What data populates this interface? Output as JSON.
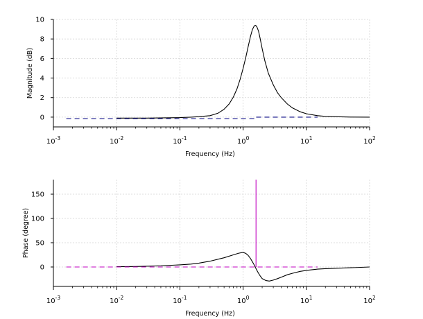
{
  "chart_data": [
    {
      "type": "line",
      "panel": "magnitude",
      "xlabel": "Frequency (Hz)",
      "ylabel": "Magnitude (dB)",
      "xscale": "log",
      "xlim": [
        0.001,
        100
      ],
      "ylim": [
        -1,
        10
      ],
      "grid": true,
      "x_ticks": [
        {
          "base": "10",
          "exp": "-3",
          "value": 0.001
        },
        {
          "base": "10",
          "exp": "-2",
          "value": 0.01
        },
        {
          "base": "10",
          "exp": "-1",
          "value": 0.1
        },
        {
          "base": "10",
          "exp": "0",
          "value": 1
        },
        {
          "base": "10",
          "exp": "1",
          "value": 10
        },
        {
          "base": "10",
          "exp": "2",
          "value": 100
        }
      ],
      "y_ticks": [
        {
          "label": "0",
          "value": 0
        },
        {
          "label": "2",
          "value": 2
        },
        {
          "label": "4",
          "value": 4
        },
        {
          "label": "6",
          "value": 6
        },
        {
          "label": "8",
          "value": 8
        },
        {
          "label": "10",
          "value": 10
        }
      ],
      "series": [
        {
          "color": "#000000",
          "style": "solid",
          "x": [
            0.01,
            0.03,
            0.1,
            0.15,
            0.2,
            0.3,
            0.4,
            0.5,
            0.6,
            0.7,
            0.8,
            0.9,
            1.0,
            1.1,
            1.2,
            1.3,
            1.4,
            1.5,
            1.58,
            1.65,
            1.75,
            1.85,
            2.0,
            2.2,
            2.5,
            3.0,
            3.5,
            4.0,
            5.0,
            6.0,
            8.0,
            10,
            15,
            20,
            30,
            50,
            100
          ],
          "y": [
            -0.1,
            -0.1,
            -0.05,
            0.0,
            0.05,
            0.15,
            0.4,
            0.8,
            1.35,
            2.05,
            2.9,
            3.9,
            5.0,
            6.1,
            7.2,
            8.2,
            8.95,
            9.35,
            9.4,
            9.25,
            8.8,
            8.1,
            7.0,
            5.8,
            4.5,
            3.3,
            2.5,
            2.0,
            1.35,
            0.95,
            0.55,
            0.35,
            0.15,
            0.08,
            0.04,
            0.01,
            0.0
          ]
        },
        {
          "color": "#000080",
          "style": "dashed",
          "x": [
            0.0016,
            1.6,
            1.6,
            15
          ],
          "y": [
            -0.15,
            -0.15,
            0.0,
            0.0
          ]
        }
      ]
    },
    {
      "type": "line",
      "panel": "phase",
      "xlabel": "Frequency (Hz)",
      "ylabel": "Phase (degree)",
      "xscale": "log",
      "xlim": [
        0.001,
        100
      ],
      "ylim": [
        -40,
        180
      ],
      "grid": true,
      "x_ticks": [
        {
          "base": "10",
          "exp": "-3",
          "value": 0.001
        },
        {
          "base": "10",
          "exp": "-2",
          "value": 0.01
        },
        {
          "base": "10",
          "exp": "-1",
          "value": 0.1
        },
        {
          "base": "10",
          "exp": "0",
          "value": 1
        },
        {
          "base": "10",
          "exp": "1",
          "value": 10
        },
        {
          "base": "10",
          "exp": "2",
          "value": 100
        }
      ],
      "y_ticks": [
        {
          "label": "0",
          "value": 0
        },
        {
          "label": "50",
          "value": 50
        },
        {
          "label": "100",
          "value": 100
        },
        {
          "label": "150",
          "value": 150
        }
      ],
      "series": [
        {
          "color": "#000000",
          "style": "solid",
          "x": [
            0.01,
            0.02,
            0.05,
            0.1,
            0.15,
            0.2,
            0.3,
            0.5,
            0.7,
            0.85,
            1.0,
            1.1,
            1.2,
            1.3,
            1.4,
            1.5,
            1.58,
            1.7,
            1.85,
            2.0,
            2.3,
            2.6,
            3.0,
            3.5,
            4.0,
            5.0,
            6.0,
            8.0,
            10,
            15,
            20,
            30,
            50,
            100
          ],
          "y": [
            0.5,
            1.0,
            2.5,
            4.5,
            6.0,
            8.0,
            12.0,
            19.0,
            25.0,
            28.5,
            30.0,
            28.0,
            24.0,
            18.0,
            11.0,
            4.0,
            -2.0,
            -10.0,
            -18.0,
            -24.0,
            -28.0,
            -29.0,
            -27.0,
            -24.0,
            -21.0,
            -16.0,
            -13.0,
            -9.0,
            -7.0,
            -4.5,
            -3.5,
            -2.5,
            -1.5,
            0.0
          ]
        },
        {
          "color": "#c000c0",
          "style": "dashed",
          "x": [
            0.0016,
            15
          ],
          "y": [
            0.0,
            0.0
          ]
        },
        {
          "color": "#c000c0",
          "style": "solid",
          "x": [
            1.6,
            1.6
          ],
          "y": [
            0.0,
            180.0
          ]
        }
      ]
    }
  ]
}
